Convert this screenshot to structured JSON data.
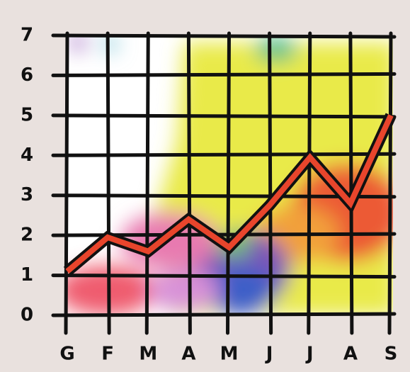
{
  "chart_data": {
    "type": "line",
    "categories": [
      "G",
      "F",
      "M",
      "A",
      "M",
      "J",
      "J",
      "A",
      "S"
    ],
    "values": [
      1.1,
      1.95,
      1.6,
      2.4,
      1.7,
      2.75,
      3.95,
      2.8,
      5.0
    ],
    "color": "#e8452c",
    "ylim": [
      0,
      7
    ],
    "yticks": [
      0,
      1,
      2,
      3,
      4,
      5,
      6,
      7
    ],
    "grid": true
  }
}
